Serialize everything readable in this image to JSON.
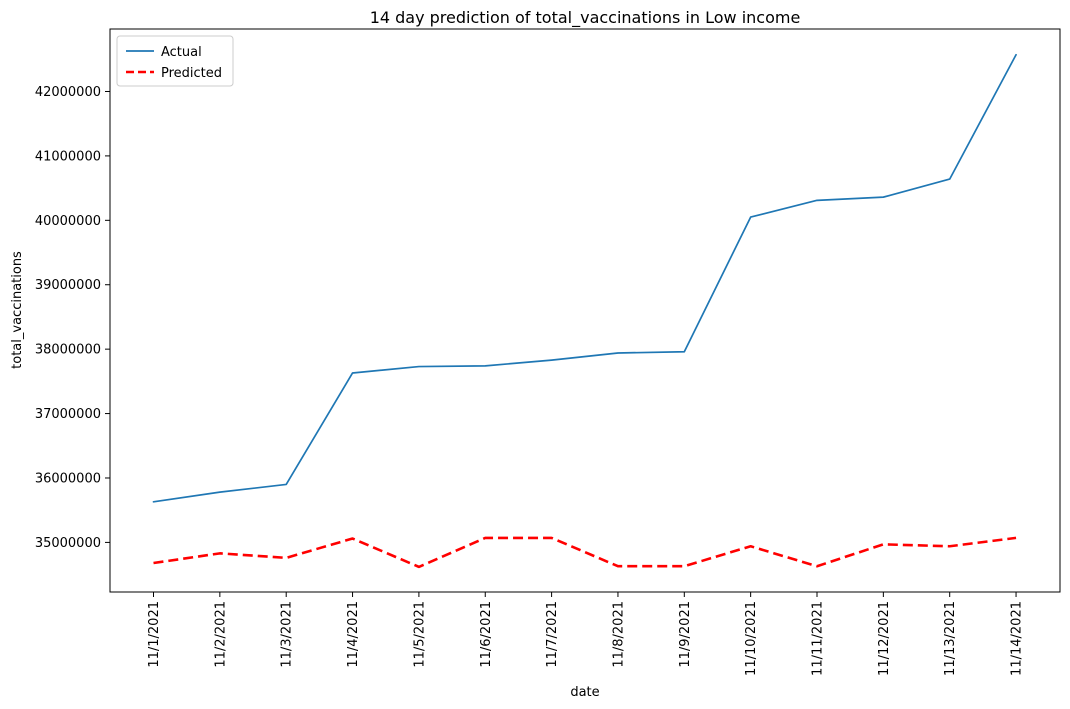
{
  "chart_data": {
    "type": "line",
    "title": "14 day prediction of total_vaccinations in Low income",
    "xlabel": "date",
    "ylabel": "total_vaccinations",
    "categories": [
      "11/1/2021",
      "11/2/2021",
      "11/3/2021",
      "11/4/2021",
      "11/5/2021",
      "11/6/2021",
      "11/7/2021",
      "11/8/2021",
      "11/9/2021",
      "11/10/2021",
      "11/11/2021",
      "11/12/2021",
      "11/13/2021",
      "11/14/2021"
    ],
    "yticks": [
      35000000,
      36000000,
      37000000,
      38000000,
      39000000,
      40000000,
      41000000,
      42000000
    ],
    "ylim": [
      34230000,
      42970000
    ],
    "grid": false,
    "legend_position": "top-left",
    "series": [
      {
        "name": "Actual",
        "color": "#1f77b4",
        "style": "solid",
        "values": [
          35630000,
          35780000,
          35900000,
          37630000,
          37730000,
          37740000,
          37830000,
          37940000,
          37960000,
          40050000,
          40310000,
          40360000,
          40640000,
          42570000
        ]
      },
      {
        "name": "Predicted",
        "color": "#ff0000",
        "style": "dashed",
        "values": [
          34680000,
          34830000,
          34760000,
          35060000,
          34620000,
          35070000,
          35070000,
          34630000,
          34630000,
          34940000,
          34630000,
          34970000,
          34940000,
          35070000
        ]
      }
    ]
  }
}
